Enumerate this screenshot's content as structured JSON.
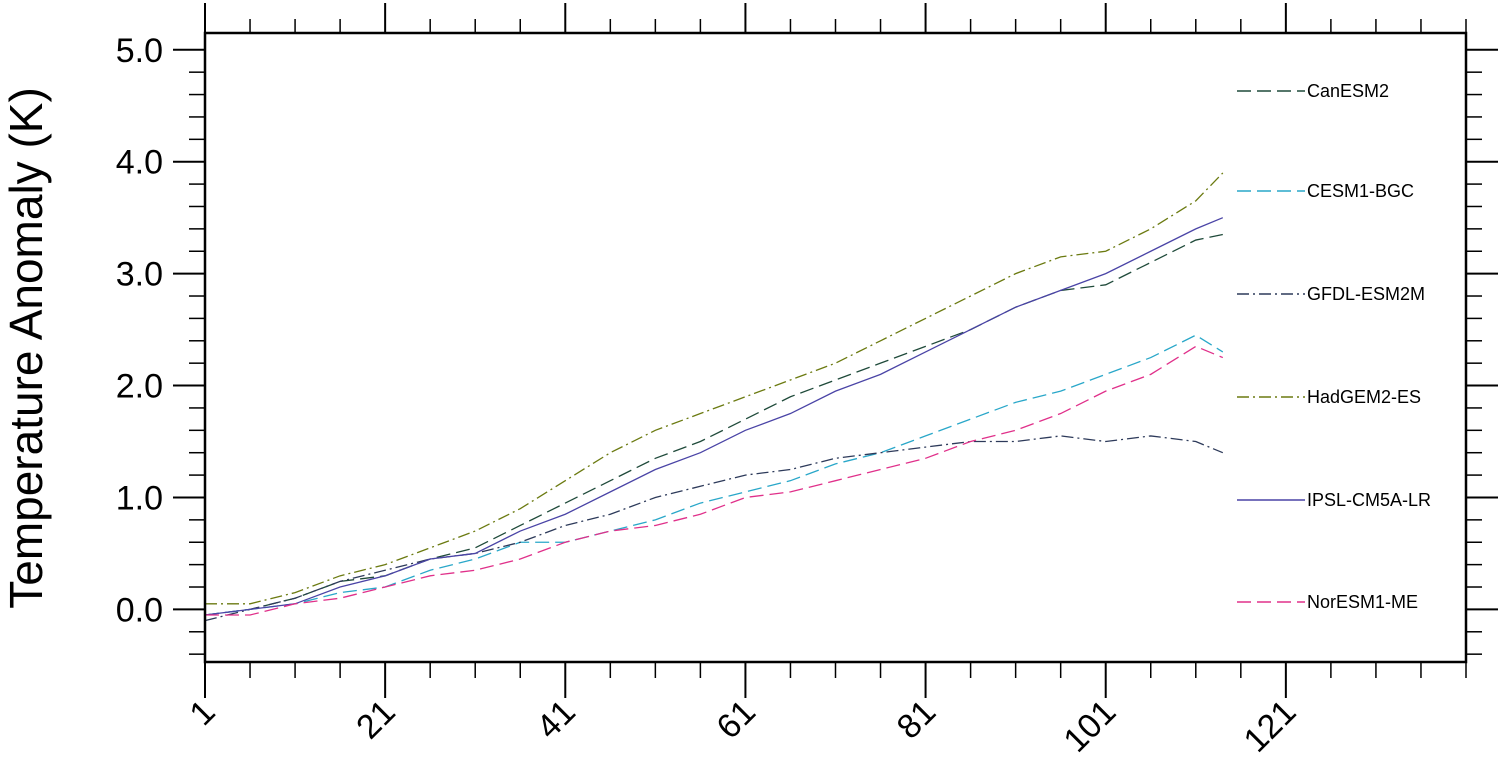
{
  "chart_data": {
    "type": "line",
    "title": "",
    "xlabel": "",
    "ylabel": "Temperature Anomaly (K)",
    "xlim": [
      1,
      141
    ],
    "ylim": [
      -0.47,
      5.15
    ],
    "x_ticks": [
      1,
      21,
      41,
      61,
      81,
      101,
      121
    ],
    "x_tick_labels": [
      "1",
      "21",
      "41",
      "61",
      "81",
      "101",
      "121"
    ],
    "y_ticks": [
      0,
      1,
      2,
      3,
      4,
      5
    ],
    "y_tick_labels": [
      "0.0",
      "1.0",
      "2.0",
      "3.0",
      "4.0",
      "5.0"
    ],
    "grid": false,
    "legend_position": "right-inside",
    "series": [
      {
        "name": "CanESM2",
        "color": "#1f4a3a",
        "dash": "long-dash",
        "x": [
          1,
          6,
          11,
          16,
          21,
          26,
          31,
          36,
          41,
          46,
          51,
          56,
          61,
          66,
          71,
          76,
          81,
          86,
          91,
          96,
          101,
          106,
          111,
          114
        ],
        "values": [
          -0.05,
          0.0,
          0.1,
          0.25,
          0.3,
          0.45,
          0.55,
          0.75,
          0.95,
          1.15,
          1.35,
          1.5,
          1.7,
          1.9,
          2.05,
          2.2,
          2.35,
          2.5,
          2.7,
          2.85,
          2.9,
          3.1,
          3.3,
          3.35
        ]
      },
      {
        "name": "CESM1-BGC",
        "color": "#29a7c9",
        "dash": "long-dash",
        "x": [
          1,
          6,
          11,
          16,
          21,
          26,
          31,
          36,
          41,
          46,
          51,
          56,
          61,
          66,
          71,
          76,
          81,
          86,
          91,
          96,
          101,
          106,
          111,
          114
        ],
        "values": [
          -0.05,
          0.0,
          0.05,
          0.15,
          0.2,
          0.35,
          0.45,
          0.6,
          0.6,
          0.7,
          0.8,
          0.95,
          1.05,
          1.15,
          1.3,
          1.4,
          1.55,
          1.7,
          1.85,
          1.95,
          2.1,
          2.25,
          2.45,
          2.3
        ]
      },
      {
        "name": "GFDL-ESM2M",
        "color": "#2d3a5a",
        "dash": "dash-dot",
        "x": [
          1,
          6,
          11,
          16,
          21,
          26,
          31,
          36,
          41,
          46,
          51,
          56,
          61,
          66,
          71,
          76,
          81,
          86,
          91,
          96,
          101,
          106,
          111,
          114
        ],
        "values": [
          -0.1,
          0.0,
          0.1,
          0.25,
          0.35,
          0.45,
          0.5,
          0.6,
          0.75,
          0.85,
          1.0,
          1.1,
          1.2,
          1.25,
          1.35,
          1.4,
          1.45,
          1.5,
          1.5,
          1.55,
          1.5,
          1.55,
          1.5,
          1.4
        ]
      },
      {
        "name": "HadGEM2-ES",
        "color": "#6b7a10",
        "dash": "dash-dot",
        "x": [
          1,
          6,
          11,
          16,
          21,
          26,
          31,
          36,
          41,
          46,
          51,
          56,
          61,
          66,
          71,
          76,
          81,
          86,
          91,
          96,
          101,
          106,
          111,
          114
        ],
        "values": [
          0.05,
          0.05,
          0.15,
          0.3,
          0.4,
          0.55,
          0.7,
          0.9,
          1.15,
          1.4,
          1.6,
          1.75,
          1.9,
          2.05,
          2.2,
          2.4,
          2.6,
          2.8,
          3.0,
          3.15,
          3.2,
          3.4,
          3.65,
          3.9
        ]
      },
      {
        "name": "IPSL-CM5A-LR",
        "color": "#4a44a6",
        "dash": "solid",
        "x": [
          1,
          6,
          11,
          16,
          21,
          26,
          31,
          36,
          41,
          46,
          51,
          56,
          61,
          66,
          71,
          76,
          81,
          86,
          91,
          96,
          101,
          106,
          111,
          114
        ],
        "values": [
          -0.05,
          0.0,
          0.05,
          0.2,
          0.3,
          0.45,
          0.5,
          0.7,
          0.85,
          1.05,
          1.25,
          1.4,
          1.6,
          1.75,
          1.95,
          2.1,
          2.3,
          2.5,
          2.7,
          2.85,
          3.0,
          3.2,
          3.4,
          3.5
        ]
      },
      {
        "name": "NorESM1-ME",
        "color": "#e0308a",
        "dash": "long-dash",
        "x": [
          1,
          6,
          11,
          16,
          21,
          26,
          31,
          36,
          41,
          46,
          51,
          56,
          61,
          66,
          71,
          76,
          81,
          86,
          91,
          96,
          101,
          106,
          111,
          114
        ],
        "values": [
          -0.05,
          -0.05,
          0.05,
          0.1,
          0.2,
          0.3,
          0.35,
          0.45,
          0.6,
          0.7,
          0.75,
          0.85,
          1.0,
          1.05,
          1.15,
          1.25,
          1.35,
          1.5,
          1.6,
          1.75,
          1.95,
          2.1,
          2.35,
          2.25
        ]
      }
    ]
  }
}
